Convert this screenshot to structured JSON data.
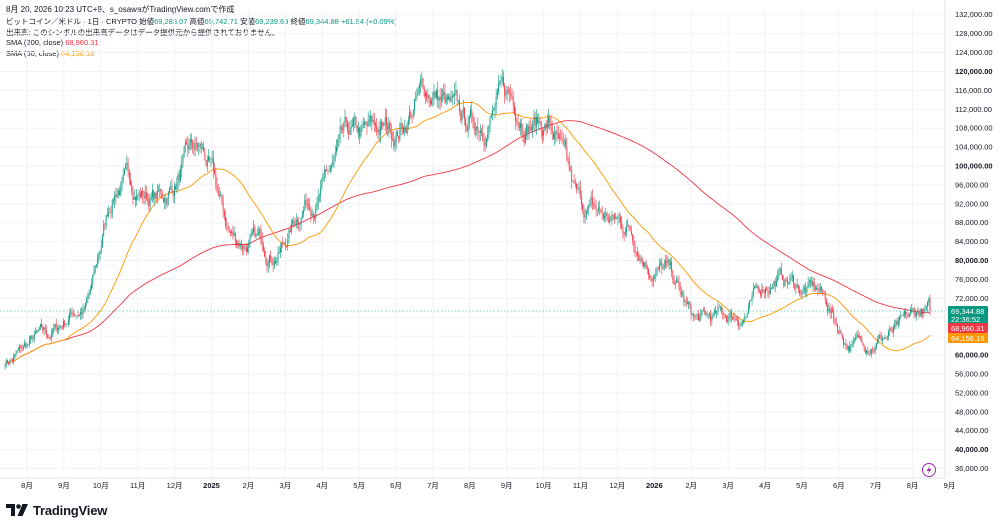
{
  "header": {
    "text": "8月 20, 2026 10:23 UTC+9、s_osawaがTradingView.comで作成"
  },
  "legend": {
    "symbol": "ビットコイン／米ドル · 1日 · CRYPTO",
    "open_label": "始値",
    "open": "69,283.07",
    "high_label": "高値",
    "high": "69,742.71",
    "low_label": "安値",
    "low": "69,239.69",
    "close_label": "終値",
    "close": "69,344.88",
    "change": "+61.94 (+0.09%)",
    "volume_note": "出来高: このシンボルの出来高データはデータ提供元から提供されておりません。",
    "sma200_label": "SMA (200, close)",
    "sma200_value": "68,960.31",
    "sma50_label": "SMA (50, close)",
    "sma50_value": "64,156.16"
  },
  "price_tags": {
    "close": "69,344.88",
    "countdown": "22:36:52",
    "sma200": "68,960.31",
    "sma50": "64,156.16"
  },
  "footer": {
    "brand": "TradingView"
  },
  "colors": {
    "up": "#089981",
    "down": "#f23645",
    "sma200": "#f23645",
    "sma50": "#ff9800",
    "grid": "#f0f3fa"
  },
  "icons": {
    "alert": "lightning-icon",
    "logo": "tradingview-logo-icon"
  },
  "chart_data": {
    "type": "candlestick",
    "title": "ビットコイン／米ドル · 1日 · CRYPTO",
    "ylim": [
      34000,
      133000
    ],
    "y_ticks": [
      "36,000.00",
      "40,000.00",
      "44,000.00",
      "48,000.00",
      "52,000.00",
      "56,000.00",
      "60,000.00",
      "64,000.00",
      "68,000.00",
      "72,000.00",
      "76,000.00",
      "80,000.00",
      "84,000.00",
      "88,000.00",
      "92,000.00",
      "96,000.00",
      "100,000.00",
      "104,000.00",
      "108,000.00",
      "112,000.00",
      "116,000.00",
      "120,000.00",
      "124,000.00",
      "128,000.00",
      "132,000.00"
    ],
    "x_ticks": [
      "8月",
      "9月",
      "10月",
      "11月",
      "12月",
      "2025",
      "2月",
      "3月",
      "4月",
      "5月",
      "6月",
      "7月",
      "8月",
      "9月",
      "10月",
      "11月",
      "12月",
      "2026",
      "2月",
      "3月",
      "4月",
      "5月",
      "6月",
      "7月",
      "8月",
      "9月"
    ],
    "price_path_monthly": {
      "dates": [
        "2024-08",
        "2024-09",
        "2024-10",
        "2024-11",
        "2024-12",
        "2025-01",
        "2025-02",
        "2025-03",
        "2025-04",
        "2025-05",
        "2025-06",
        "2025-07",
        "2025-08",
        "2025-09",
        "2025-10",
        "2025-11",
        "2025-12",
        "2026-01",
        "2026-02",
        "2026-03",
        "2026-04",
        "2026-05",
        "2026-06",
        "2026-07",
        "2026-08"
      ],
      "close": [
        59000,
        63500,
        70000,
        96400,
        93400,
        102400,
        84300,
        82500,
        94200,
        104600,
        107200,
        115700,
        108200,
        114000,
        109500,
        90500,
        87700,
        78600,
        67000,
        68200,
        76300,
        73500,
        62500,
        64500,
        69344.88
      ]
    },
    "sma200_last": 68960.31,
    "sma50_last": 64156.16,
    "last_close": 69344.88
  }
}
